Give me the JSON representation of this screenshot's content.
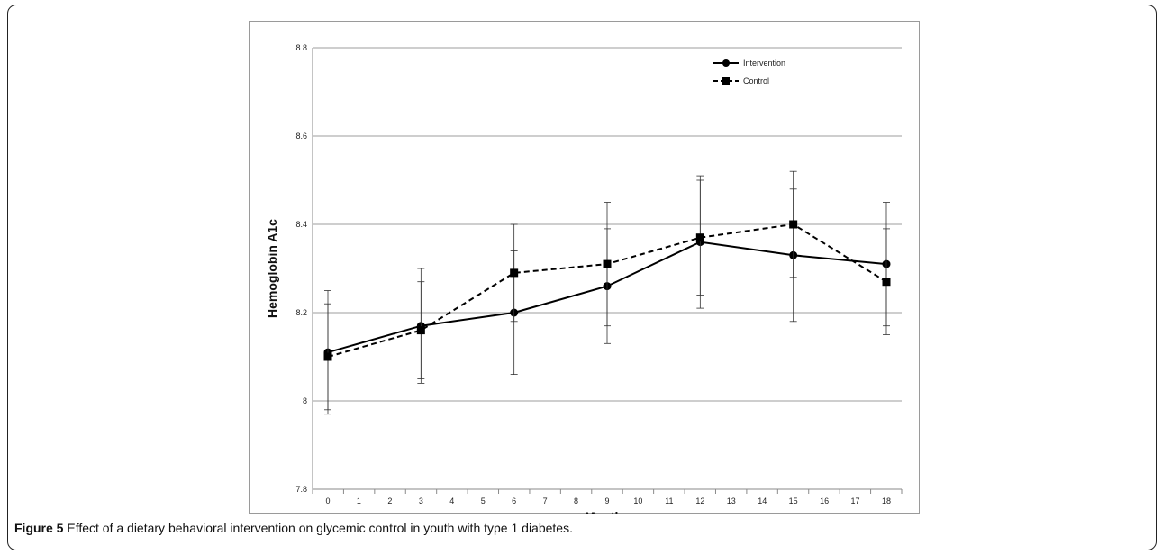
{
  "figure": {
    "label": "Figure 5",
    "caption": "Effect of a dietary behavioral intervention on glycemic control in youth with type 1 diabetes."
  },
  "chart_data": {
    "type": "line",
    "title": "",
    "xlabel": "Months",
    "ylabel": "Hemoglobin A1c",
    "xlim": [
      0,
      18
    ],
    "ylim": [
      7.8,
      8.8
    ],
    "x_ticks": [
      0,
      1,
      2,
      3,
      4,
      5,
      6,
      7,
      8,
      9,
      10,
      11,
      12,
      13,
      14,
      15,
      16,
      17,
      18
    ],
    "y_ticks": [
      7.8,
      8,
      8.2,
      8.4,
      8.6,
      8.8
    ],
    "y_tick_labels": [
      "7.8",
      "8",
      "8.2",
      "8.4",
      "8.6",
      "8.8"
    ],
    "grid": "horizontal",
    "legend_position": "top-right",
    "series": [
      {
        "name": "Intervention",
        "marker": "circle",
        "line_style": "solid",
        "color": "#000000",
        "x": [
          0,
          3,
          6,
          9,
          12,
          15,
          18
        ],
        "y": [
          8.11,
          8.17,
          8.2,
          8.26,
          8.36,
          8.33,
          8.31
        ],
        "error_low": [
          7.98,
          8.05,
          8.06,
          8.13,
          8.21,
          8.18,
          8.17
        ],
        "error_high": [
          8.22,
          8.27,
          8.34,
          8.39,
          8.51,
          8.48,
          8.45
        ]
      },
      {
        "name": "Control",
        "marker": "square",
        "line_style": "dashed",
        "color": "#000000",
        "x": [
          0,
          3,
          6,
          9,
          12,
          15,
          18
        ],
        "y": [
          8.1,
          8.16,
          8.29,
          8.31,
          8.37,
          8.4,
          8.27
        ],
        "error_low": [
          7.97,
          8.04,
          8.18,
          8.17,
          8.24,
          8.28,
          8.15
        ],
        "error_high": [
          8.25,
          8.3,
          8.4,
          8.45,
          8.5,
          8.52,
          8.39
        ]
      }
    ]
  }
}
